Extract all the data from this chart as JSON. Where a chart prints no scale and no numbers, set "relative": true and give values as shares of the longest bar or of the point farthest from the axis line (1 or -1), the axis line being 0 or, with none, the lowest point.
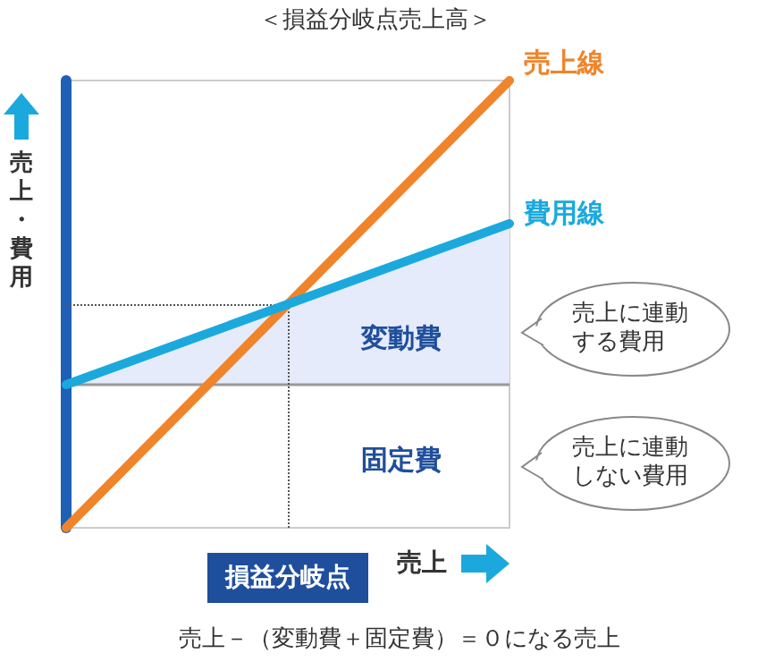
{
  "chart_data": {
    "type": "line",
    "title": "＜損益分岐点売上高＞",
    "xlabel": "売上",
    "ylabel": "売上・費用",
    "relative": true,
    "categories": [
      null,
      null,
      null
    ],
    "tick_labels": false,
    "grid": false,
    "legend": false,
    "marker": "none",
    "line_style": "solid",
    "series": [
      {
        "name": "売上線",
        "color": "#f0842a",
        "values": [
          0,
          0.5,
          1
        ]
      },
      {
        "name": "費用線",
        "color": "#1ba9dd",
        "values": [
          0.32,
          0.5,
          0.68
        ],
        "lower": [
          0.32,
          0.32,
          0.32
        ],
        "upper": [
          0.32,
          0.5,
          0.68
        ]
      }
    ],
    "ref_lines": [
      {
        "axis": "y",
        "value": 0.32,
        "color": "#999999",
        "line_style": "solid"
      },
      {
        "axis": "y",
        "value": 0.5,
        "color": "#555555",
        "line_style": "dotted"
      },
      {
        "axis": "x",
        "label": "損益分岐点",
        "color": "#555555",
        "line_style": "dotted"
      }
    ],
    "annotations": [
      "変動費",
      "固定費",
      "売上に連動する費用",
      "売上に連動しない費用",
      "売上－（変動費＋固定費）＝０になる売上"
    ]
  }
}
